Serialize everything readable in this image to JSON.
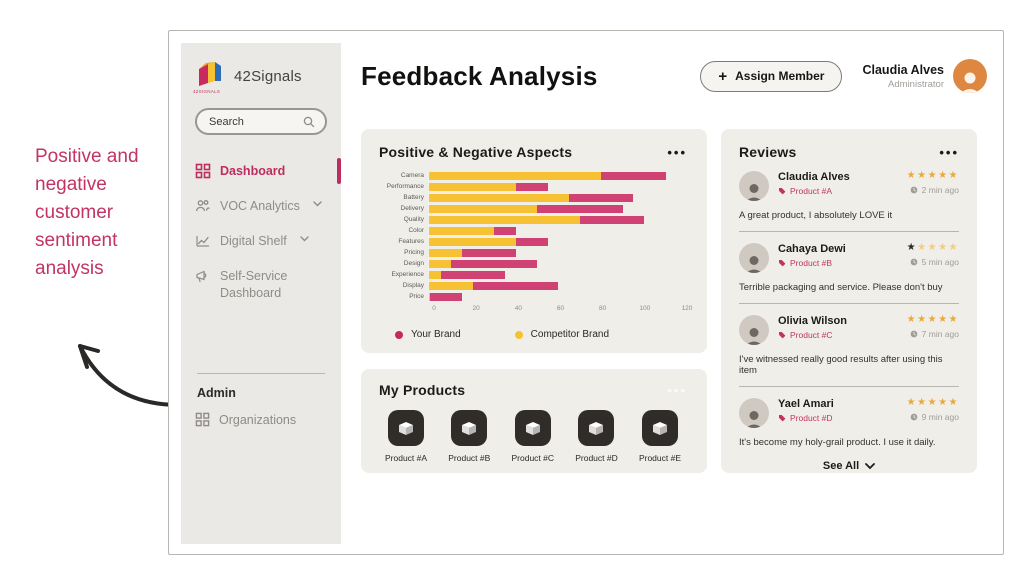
{
  "annotation": {
    "text": "Positive and negative customer sentiment analysis"
  },
  "sidebar": {
    "brand": "42Signals",
    "brand_sub": "42SIGNALS",
    "search_placeholder": "Search",
    "items": [
      {
        "label": "Dashboard",
        "icon": "grid-icon",
        "active": true
      },
      {
        "label": "VOC Analytics",
        "icon": "users-icon",
        "chevron": true
      },
      {
        "label": "Digital Shelf",
        "icon": "line-chart-icon",
        "chevron": true
      },
      {
        "label": "Self-Service Dashboard",
        "icon": "megaphone-icon"
      }
    ],
    "admin_label": "Admin",
    "admin_items": [
      {
        "label": "Organizations",
        "icon": "grid-icon"
      }
    ]
  },
  "header": {
    "title": "Feedback Analysis",
    "assign_button": "Assign Member",
    "user": {
      "name": "Claudia Alves",
      "role": "Administrator"
    }
  },
  "chart_card": {
    "title": "Positive & Negative Aspects",
    "menu": "•••"
  },
  "chart_data": {
    "type": "bar",
    "orientation": "horizontal",
    "stacked": true,
    "title": "Positive & Negative Aspects",
    "categories": [
      "Camera",
      "Performance",
      "Battery",
      "Delivery",
      "Quality",
      "Color",
      "Features",
      "Pricing",
      "Design",
      "Experience",
      "Display",
      "Price"
    ],
    "series": [
      {
        "name": "Competitor Brand",
        "color": "#f6c233",
        "values": [
          80,
          40,
          65,
          50,
          70,
          30,
          40,
          15,
          10,
          5,
          20,
          0
        ]
      },
      {
        "name": "Your Brand",
        "color": "#d04273",
        "values": [
          30,
          15,
          30,
          40,
          30,
          10,
          15,
          25,
          40,
          30,
          40,
          15
        ]
      }
    ],
    "xlim": [
      0,
      120
    ],
    "xticks": [
      0,
      20,
      40,
      60,
      80,
      100,
      120
    ],
    "grid": false,
    "legend_position": "bottom",
    "legend": [
      {
        "label": "Your Brand",
        "color": "#c42960"
      },
      {
        "label": "Competitor Brand",
        "color": "#f6c233"
      }
    ]
  },
  "products_card": {
    "title": "My Products",
    "menu": "•••",
    "items": [
      {
        "label": "Product #A"
      },
      {
        "label": "Product #B"
      },
      {
        "label": "Product #C"
      },
      {
        "label": "Product #D"
      },
      {
        "label": "Product #E"
      }
    ]
  },
  "reviews_card": {
    "title": "Reviews",
    "menu": "•••",
    "see_all": "See All",
    "reviews": [
      {
        "name": "Claudia Alves",
        "product": "Product #A",
        "rating": 5,
        "time": "2 min ago",
        "text": "A great product, I absolutely LOVE it"
      },
      {
        "name": "Cahaya Dewi",
        "product": "Product #B",
        "rating": 1,
        "time": "5 min ago",
        "text": "Terrible packaging and service. Please don't buy"
      },
      {
        "name": "Olivia Wilson",
        "product": "Product #C",
        "rating": 5,
        "time": "7 min ago",
        "text": "I've witnessed really good results after using this item"
      },
      {
        "name": "Yael Amari",
        "product": "Product #D",
        "rating": 5,
        "time": "9 min ago",
        "text": "It's become my holy-grail product. I use it daily."
      }
    ]
  }
}
